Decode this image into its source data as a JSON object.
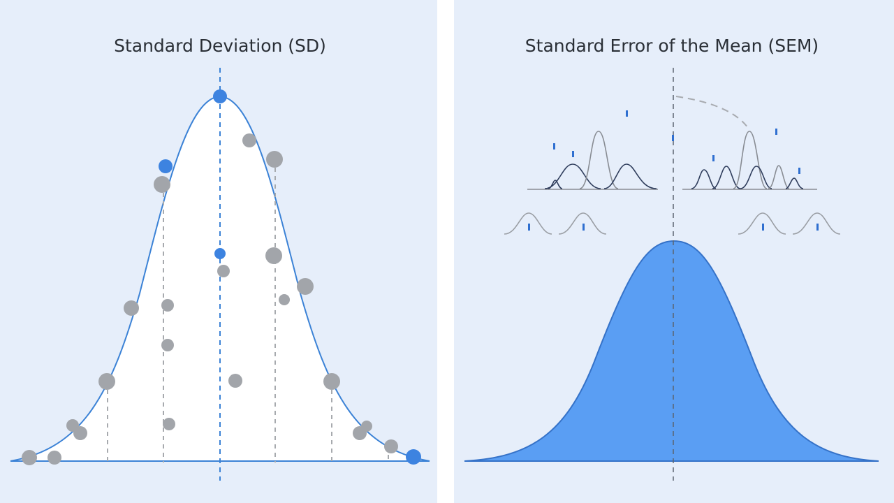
{
  "panels": [
    {
      "title": "Standard Deviation (SD)"
    },
    {
      "title": "Standard Error of the Mean (SEM)"
    }
  ]
}
